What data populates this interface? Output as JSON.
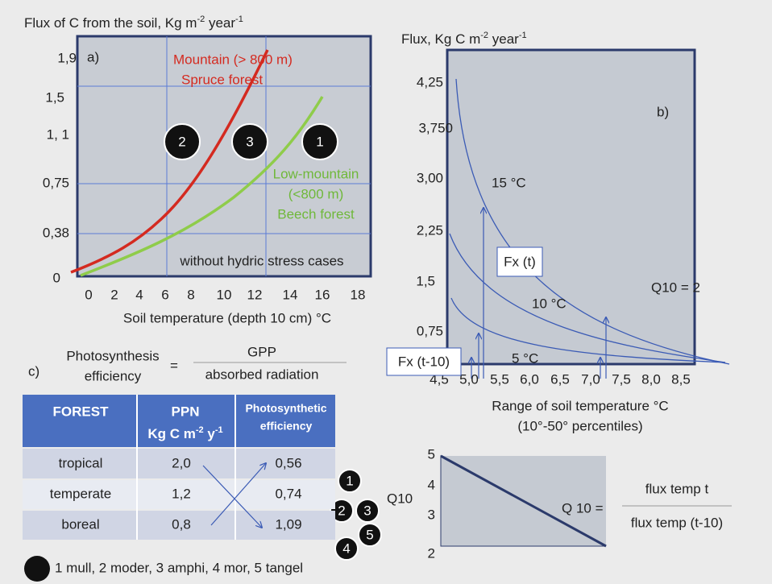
{
  "panel_a": {
    "title": {
      "text": "Flux of C from the soil, Kg m",
      "sup1": "-2",
      "text2": " year",
      "sup2": "-1"
    },
    "label": "a)",
    "y_labels": [
      "1,9",
      "1,5",
      "1, 1",
      "0,75",
      "0,38",
      "0"
    ],
    "x_labels": [
      "0",
      "2",
      "4",
      "6",
      "8",
      "10",
      "12",
      "14",
      "16",
      "18"
    ],
    "x_title": "Soil temperature (depth 10 cm) °C",
    "mountain": [
      "Mountain (> 800 m)",
      "Spruce forest"
    ],
    "lowmountain": [
      "Low-mountain",
      "(<800 m)",
      "Beech forest"
    ],
    "note": "without hydric stress cases",
    "circles": [
      "2",
      "3",
      "1"
    ]
  },
  "panel_b": {
    "title": {
      "text": "Flux, Kg C m",
      "sup1": "-2",
      "text2": " year",
      "sup2": "-1"
    },
    "label": "b)",
    "y_labels": [
      "4,25",
      "3,750",
      "3,00",
      "2,25",
      "1,5",
      "0,75"
    ],
    "x_labels": [
      "4,5",
      "5,0",
      "5,5",
      "6,0",
      "6,5",
      "7,0",
      "7,5",
      "8,0",
      "8,5"
    ],
    "x_title": [
      "Range of soil temperature °C",
      "(10°-50° percentiles)"
    ],
    "curve_labels": [
      "15 °C",
      "10 °C",
      "5 °C"
    ],
    "q10": "Q10 = 2",
    "fx_t": "Fx (t)",
    "fx_t10": "Fx (t-10)"
  },
  "q10_panel": {
    "y_labels": [
      "5",
      "4",
      "3",
      "2"
    ],
    "axis_title": "Q10",
    "circles": [
      "1",
      "2",
      "3",
      "5",
      "4"
    ],
    "formula": {
      "lhs": "Q 10 =",
      "numerator": "flux temp t",
      "denominator": "flux temp (t-10)"
    }
  },
  "panel_c": {
    "label": "c)",
    "formula": {
      "lhs": [
        "Photosynthesis",
        "efficiency"
      ],
      "eq": "=",
      "numerator": "GPP",
      "denominator": "absorbed radiation"
    },
    "table": {
      "header": [
        "FOREST",
        [
          "PPN",
          "Kg C m",
          "-2",
          " y",
          "-1"
        ],
        [
          "Photosynthetic",
          "efficiency"
        ]
      ],
      "rows": [
        [
          "tropical",
          "2,0",
          "0,56"
        ],
        [
          "temperate",
          "1,2",
          "0,74"
        ],
        [
          "boreal",
          "0,8",
          "1,09"
        ]
      ]
    }
  },
  "legend": "1 mull, 2 moder, 3 amphi, 4 mor, 5 tangel"
}
